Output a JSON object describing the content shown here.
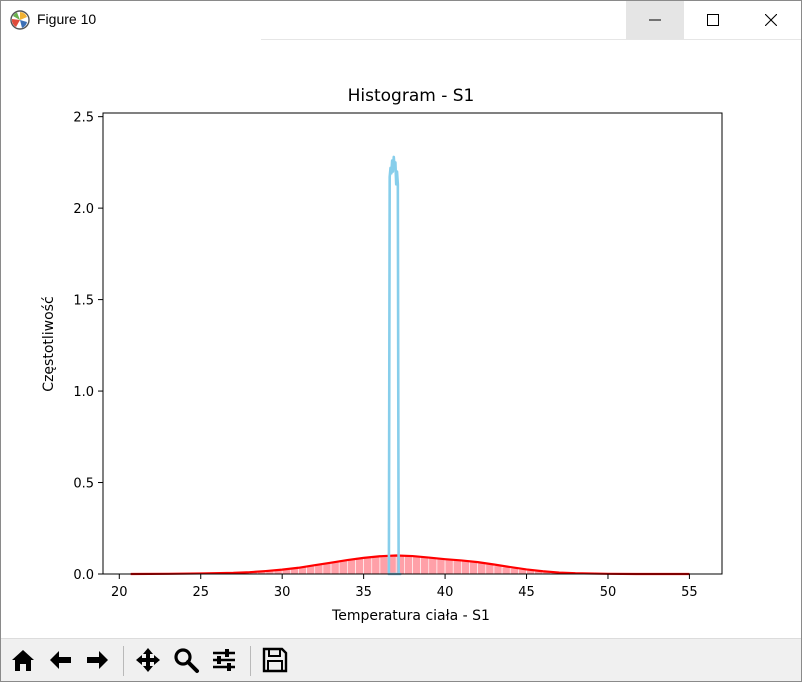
{
  "window": {
    "title": "Figure 10",
    "app_icon": "matplotlib-icon",
    "controls": [
      "minimize-icon",
      "maximize-icon",
      "close-icon"
    ]
  },
  "toolbar": {
    "buttons": [
      "home-icon",
      "back-arrow-icon",
      "forward-arrow-icon",
      "pan-icon",
      "zoom-icon",
      "configure-subplots-icon",
      "save-icon"
    ]
  },
  "colors": {
    "histogram_bar": "#ffa0a8",
    "kde_red": "#ff0000",
    "kde_blue": "#87ceeb"
  },
  "chart_data": {
    "type": "area",
    "title": "Histogram - S1",
    "xlabel": "Temperatura ciała - S1",
    "ylabel": "Częstotliwość",
    "xlim": [
      19,
      57
    ],
    "ylim": [
      0,
      2.52
    ],
    "xticks": [
      20,
      25,
      30,
      35,
      40,
      45,
      50,
      55
    ],
    "yticks": [
      0.0,
      0.5,
      1.0,
      1.5,
      2.0,
      2.5
    ],
    "xtick_labels": [
      "20",
      "25",
      "30",
      "35",
      "40",
      "45",
      "50",
      "55"
    ],
    "ytick_labels": [
      "0.0",
      "0.5",
      "1.0",
      "1.5",
      "2.0",
      "2.5"
    ],
    "grid": false,
    "series": [
      {
        "kind": "histogram",
        "color": "#ffa0a8",
        "bins": [
          [
            27.0,
            0.005
          ],
          [
            27.5,
            0.007
          ],
          [
            28.0,
            0.009
          ],
          [
            28.5,
            0.012
          ],
          [
            29.0,
            0.016
          ],
          [
            29.5,
            0.02
          ],
          [
            30.0,
            0.025
          ],
          [
            30.5,
            0.031
          ],
          [
            31.0,
            0.038
          ],
          [
            31.5,
            0.045
          ],
          [
            32.0,
            0.053
          ],
          [
            32.5,
            0.061
          ],
          [
            33.0,
            0.069
          ],
          [
            33.5,
            0.077
          ],
          [
            34.0,
            0.084
          ],
          [
            34.5,
            0.09
          ],
          [
            35.0,
            0.095
          ],
          [
            35.5,
            0.099
          ],
          [
            36.0,
            0.101
          ],
          [
            36.5,
            0.102
          ],
          [
            37.0,
            0.101
          ],
          [
            37.5,
            0.099
          ],
          [
            38.0,
            0.097
          ],
          [
            38.5,
            0.093
          ],
          [
            39.0,
            0.089
          ],
          [
            39.5,
            0.084
          ],
          [
            40.0,
            0.079
          ],
          [
            40.5,
            0.075
          ],
          [
            41.0,
            0.071
          ],
          [
            41.5,
            0.066
          ],
          [
            42.0,
            0.06
          ],
          [
            42.5,
            0.053
          ],
          [
            43.0,
            0.045
          ],
          [
            43.5,
            0.038
          ],
          [
            44.0,
            0.031
          ],
          [
            44.5,
            0.025
          ],
          [
            45.0,
            0.02
          ],
          [
            45.5,
            0.015
          ],
          [
            46.0,
            0.011
          ],
          [
            46.5,
            0.008
          ],
          [
            47.0,
            0.006
          ],
          [
            47.5,
            0.004
          ]
        ],
        "bin_width": 0.5
      },
      {
        "kind": "kde",
        "color": "#ff0000",
        "x": [
          20.7,
          23,
          25,
          27,
          28,
          29,
          30,
          31,
          32,
          33,
          34,
          35,
          36,
          37,
          38,
          39,
          40,
          41,
          42,
          43,
          44,
          45,
          46,
          47,
          48,
          50,
          52,
          55
        ],
        "y": [
          0.0,
          0.001,
          0.003,
          0.006,
          0.01,
          0.016,
          0.024,
          0.034,
          0.048,
          0.062,
          0.076,
          0.088,
          0.097,
          0.101,
          0.098,
          0.09,
          0.081,
          0.074,
          0.065,
          0.052,
          0.038,
          0.025,
          0.015,
          0.008,
          0.004,
          0.001,
          0.0,
          0.0
        ]
      },
      {
        "kind": "histogram-outline",
        "color": "#87ceeb",
        "x": [
          36.55,
          36.6,
          36.65,
          36.7,
          36.75,
          36.8,
          36.85,
          36.9,
          36.95,
          37.0,
          37.05,
          37.1,
          37.15,
          37.2,
          37.25
        ],
        "y": [
          0.0,
          2.17,
          2.22,
          2.19,
          2.26,
          2.2,
          2.28,
          2.22,
          2.25,
          2.13,
          2.2,
          2.13,
          0.0,
          0.0,
          0.0
        ]
      }
    ]
  }
}
